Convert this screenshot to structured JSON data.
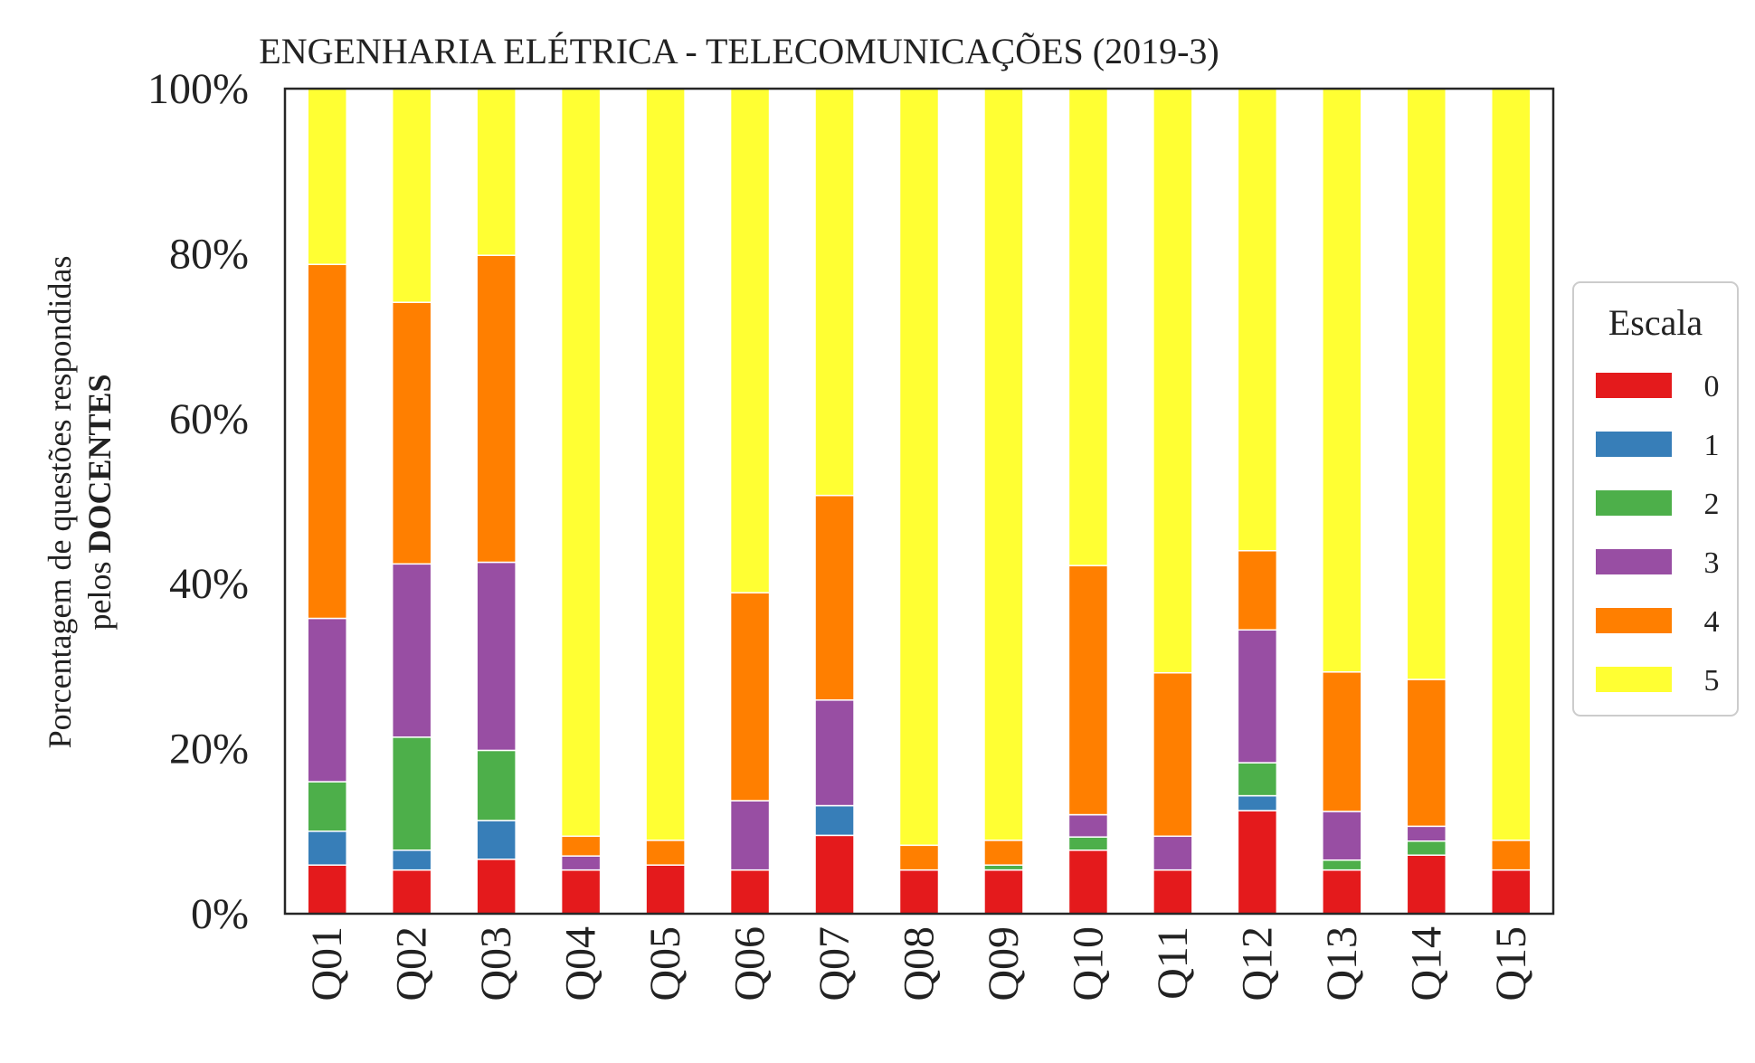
{
  "chart_data": {
    "type": "bar",
    "stacked": true,
    "percent": true,
    "title": "ENGENHARIA ELÉTRICA - TELECOMUNICAÇÕES (2019-3)",
    "ylabel_line1": "Porcentagem de questões respondidas",
    "ylabel_line2_prefix": "pelos ",
    "ylabel_line2_bold": "DOCENTES",
    "ylim": [
      0,
      100
    ],
    "yticks": [
      "0%",
      "20%",
      "40%",
      "60%",
      "80%",
      "100%"
    ],
    "ytick_values": [
      0,
      20,
      40,
      60,
      80,
      100
    ],
    "categories": [
      "Q01",
      "Q02",
      "Q03",
      "Q04",
      "Q05",
      "Q06",
      "Q07",
      "Q08",
      "Q09",
      "Q10",
      "Q11",
      "Q12",
      "Q13",
      "Q14",
      "Q15"
    ],
    "legend_title": "Escala",
    "legend_position": "center-right",
    "grid": false,
    "series": [
      {
        "name": "0",
        "color": "#e41a1c",
        "values": [
          5.9,
          5.3,
          6.6,
          5.3,
          5.9,
          5.3,
          9.5,
          5.3,
          5.3,
          7.7,
          5.3,
          12.5,
          5.3,
          7.1,
          5.3
        ]
      },
      {
        "name": "1",
        "color": "#377eb8",
        "values": [
          4.1,
          2.4,
          4.7,
          0,
          0,
          0,
          3.6,
          0,
          0,
          0,
          0,
          1.8,
          0,
          0,
          0
        ]
      },
      {
        "name": "2",
        "color": "#4daf4a",
        "values": [
          6.0,
          13.7,
          8.5,
          0,
          0,
          0,
          0,
          0,
          0.6,
          1.6,
          0,
          4.0,
          1.2,
          1.7,
          0
        ]
      },
      {
        "name": "3",
        "color": "#984ea3",
        "values": [
          19.8,
          21.0,
          22.8,
          1.7,
          0,
          8.4,
          12.8,
          0,
          0,
          2.7,
          4.1,
          16.1,
          5.9,
          1.8,
          0
        ]
      },
      {
        "name": "4",
        "color": "#ff7f00",
        "values": [
          42.9,
          31.7,
          37.2,
          2.4,
          3.0,
          25.2,
          24.8,
          3.0,
          3.0,
          30.2,
          19.8,
          9.6,
          16.9,
          17.8,
          3.6
        ]
      },
      {
        "name": "5",
        "color": "#ffff33",
        "values": [
          21.3,
          25.9,
          20.2,
          90.6,
          91.1,
          61.1,
          49.3,
          91.7,
          91.1,
          57.8,
          70.8,
          56.0,
          70.7,
          71.6,
          91.1
        ]
      }
    ]
  }
}
